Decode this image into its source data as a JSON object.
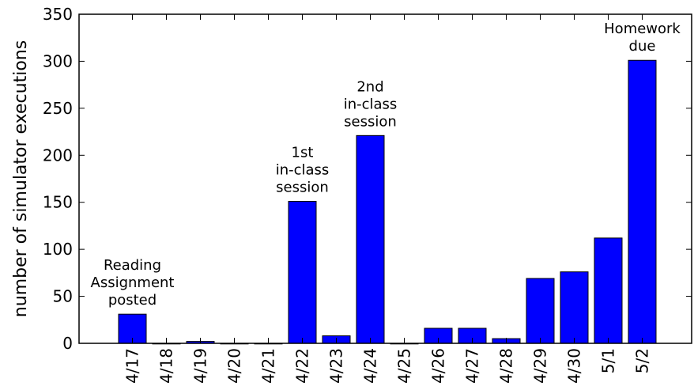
{
  "chart_data": {
    "type": "bar",
    "title": "",
    "xlabel": "",
    "ylabel": "number of simulator executions",
    "categories": [
      "4/17",
      "4/18",
      "4/19",
      "4/20",
      "4/21",
      "4/22",
      "4/23",
      "4/24",
      "4/25",
      "4/26",
      "4/27",
      "4/28",
      "4/29",
      "4/30",
      "5/1",
      "5/2"
    ],
    "values": [
      31,
      0,
      2,
      0,
      0,
      151,
      8,
      221,
      0,
      16,
      16,
      5,
      69,
      76,
      112,
      301
    ],
    "ylim": [
      0,
      350
    ],
    "yticks": [
      0,
      50,
      100,
      150,
      200,
      250,
      300,
      350
    ],
    "grid": false,
    "bar_color": "#0000ff",
    "bar_edge_color": "#000000",
    "annotations": [
      {
        "category": "4/17",
        "lines": [
          "Reading",
          "Assignment",
          "posted"
        ]
      },
      {
        "category": "4/22",
        "lines": [
          "1st",
          "in-class",
          "session"
        ]
      },
      {
        "category": "4/24",
        "lines": [
          "2nd",
          "in-class",
          "session"
        ]
      },
      {
        "category": "5/2",
        "lines": [
          "Homework",
          "due"
        ]
      }
    ]
  }
}
